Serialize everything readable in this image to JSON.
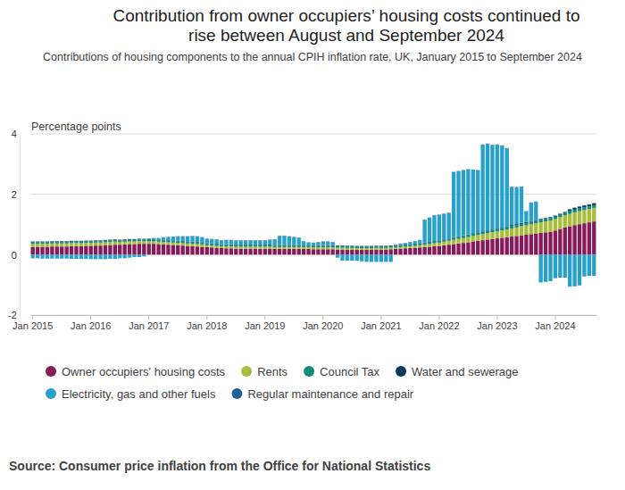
{
  "chart_data": {
    "type": "bar",
    "stacked": true,
    "grid": true,
    "legend": "bottom",
    "title": "Contribution from owner occupiers’ housing costs continued to rise between August and September 2024",
    "subtitle": "Contributions of housing components to the annual CPIH inflation rate, UK, January 2015 to September 2024",
    "y_label": "Percentage points",
    "source": "Source: Consumer price inflation from the Office for National Statistics",
    "ylim": [
      -2,
      4
    ],
    "yticks": [
      -2,
      0,
      2,
      4
    ],
    "categories": [
      "Jan 2015",
      null,
      null,
      null,
      null,
      null,
      null,
      null,
      null,
      null,
      null,
      null,
      "Jan 2016",
      null,
      null,
      null,
      null,
      null,
      null,
      null,
      null,
      null,
      null,
      null,
      "Jan 2017",
      null,
      null,
      null,
      null,
      null,
      null,
      null,
      null,
      null,
      null,
      null,
      "Jan 2018",
      null,
      null,
      null,
      null,
      null,
      null,
      null,
      null,
      null,
      null,
      null,
      "Jan 2019",
      null,
      null,
      null,
      null,
      null,
      null,
      null,
      null,
      null,
      null,
      null,
      "Jan 2020",
      null,
      null,
      null,
      null,
      null,
      null,
      null,
      null,
      null,
      null,
      null,
      "Jan 2021",
      null,
      null,
      null,
      null,
      null,
      null,
      null,
      null,
      null,
      null,
      null,
      "Jan 2022",
      null,
      null,
      null,
      null,
      null,
      null,
      null,
      null,
      null,
      null,
      null,
      "Jan 2023",
      null,
      null,
      null,
      null,
      null,
      null,
      null,
      null,
      null,
      null,
      null,
      "Jan 2024",
      null,
      null,
      null,
      null,
      null,
      null,
      null,
      null
    ],
    "series": [
      {
        "name": "Owner occupiers' housing costs",
        "color": "#871a5b",
        "values": [
          0.26,
          0.26,
          0.26,
          0.26,
          0.27,
          0.27,
          0.27,
          0.27,
          0.28,
          0.28,
          0.28,
          0.29,
          0.29,
          0.3,
          0.3,
          0.31,
          0.32,
          0.33,
          0.33,
          0.34,
          0.35,
          0.35,
          0.36,
          0.36,
          0.36,
          0.36,
          0.35,
          0.34,
          0.33,
          0.32,
          0.31,
          0.3,
          0.29,
          0.28,
          0.27,
          0.26,
          0.25,
          0.24,
          0.23,
          0.22,
          0.21,
          0.21,
          0.2,
          0.2,
          0.2,
          0.2,
          0.2,
          0.2,
          0.2,
          0.2,
          0.19,
          0.19,
          0.19,
          0.19,
          0.19,
          0.19,
          0.19,
          0.19,
          0.18,
          0.18,
          0.18,
          0.18,
          0.18,
          0.17,
          0.17,
          0.16,
          0.16,
          0.16,
          0.16,
          0.16,
          0.16,
          0.17,
          0.17,
          0.17,
          0.18,
          0.19,
          0.2,
          0.21,
          0.22,
          0.23,
          0.24,
          0.25,
          0.26,
          0.28,
          0.29,
          0.31,
          0.33,
          0.35,
          0.37,
          0.39,
          0.41,
          0.44,
          0.46,
          0.48,
          0.5,
          0.52,
          0.54,
          0.56,
          0.58,
          0.6,
          0.62,
          0.64,
          0.66,
          0.68,
          0.7,
          0.72,
          0.74,
          0.76,
          0.8,
          0.85,
          0.9,
          0.94,
          0.98,
          1.01,
          1.04,
          1.07,
          1.1
        ]
      },
      {
        "name": "Rents",
        "color": "#a8bd3a",
        "values": [
          0.1,
          0.1,
          0.1,
          0.1,
          0.1,
          0.1,
          0.1,
          0.1,
          0.1,
          0.1,
          0.1,
          0.1,
          0.1,
          0.1,
          0.1,
          0.1,
          0.1,
          0.1,
          0.09,
          0.09,
          0.09,
          0.09,
          0.09,
          0.09,
          0.08,
          0.08,
          0.08,
          0.08,
          0.08,
          0.08,
          0.08,
          0.08,
          0.08,
          0.08,
          0.08,
          0.08,
          0.06,
          0.06,
          0.06,
          0.06,
          0.06,
          0.06,
          0.06,
          0.06,
          0.06,
          0.06,
          0.06,
          0.06,
          0.06,
          0.06,
          0.06,
          0.06,
          0.06,
          0.06,
          0.06,
          0.06,
          0.06,
          0.06,
          0.06,
          0.06,
          0.06,
          0.06,
          0.06,
          0.06,
          0.06,
          0.06,
          0.06,
          0.05,
          0.05,
          0.05,
          0.05,
          0.05,
          0.05,
          0.05,
          0.05,
          0.05,
          0.05,
          0.05,
          0.06,
          0.06,
          0.07,
          0.08,
          0.09,
          0.1,
          0.11,
          0.12,
          0.13,
          0.14,
          0.15,
          0.16,
          0.17,
          0.18,
          0.19,
          0.2,
          0.21,
          0.22,
          0.23,
          0.24,
          0.25,
          0.27,
          0.28,
          0.3,
          0.31,
          0.33,
          0.34,
          0.35,
          0.36,
          0.37,
          0.38,
          0.39,
          0.4,
          0.41,
          0.42,
          0.43,
          0.44,
          0.44,
          0.45
        ]
      },
      {
        "name": "Council Tax",
        "color": "#118c7b",
        "values": [
          0.05,
          0.05,
          0.05,
          0.05,
          0.05,
          0.05,
          0.05,
          0.05,
          0.05,
          0.05,
          0.05,
          0.05,
          0.05,
          0.05,
          0.05,
          0.05,
          0.05,
          0.05,
          0.05,
          0.05,
          0.05,
          0.05,
          0.05,
          0.05,
          0.05,
          0.05,
          0.05,
          0.05,
          0.05,
          0.05,
          0.05,
          0.05,
          0.05,
          0.05,
          0.05,
          0.05,
          0.05,
          0.05,
          0.05,
          0.05,
          0.05,
          0.05,
          0.05,
          0.05,
          0.05,
          0.05,
          0.05,
          0.05,
          0.05,
          0.05,
          0.05,
          0.05,
          0.05,
          0.05,
          0.05,
          0.05,
          0.05,
          0.05,
          0.05,
          0.05,
          0.05,
          0.05,
          0.05,
          0.05,
          0.05,
          0.05,
          0.05,
          0.05,
          0.05,
          0.05,
          0.05,
          0.05,
          0.05,
          0.05,
          0.05,
          0.05,
          0.05,
          0.05,
          0.05,
          0.05,
          0.05,
          0.05,
          0.05,
          0.05,
          0.05,
          0.05,
          0.05,
          0.07,
          0.07,
          0.07,
          0.07,
          0.07,
          0.07,
          0.07,
          0.07,
          0.07,
          0.07,
          0.07,
          0.07,
          0.08,
          0.08,
          0.08,
          0.08,
          0.08,
          0.08,
          0.08,
          0.08,
          0.08,
          0.08,
          0.08,
          0.08,
          0.09,
          0.09,
          0.09,
          0.09,
          0.09,
          0.09
        ]
      },
      {
        "name": "Water and sewerage",
        "color": "#003c57",
        "values": [
          0.02,
          0.02,
          0.02,
          0.02,
          0.02,
          0.02,
          0.02,
          0.02,
          0.02,
          0.02,
          0.02,
          0.02,
          0.02,
          0.02,
          0.02,
          0.02,
          0.02,
          0.02,
          0.02,
          0.02,
          0.02,
          0.02,
          0.02,
          0.02,
          0.02,
          0.02,
          0.02,
          0.02,
          0.02,
          0.02,
          0.02,
          0.02,
          0.02,
          0.02,
          0.02,
          0.02,
          0.02,
          0.02,
          0.02,
          0.02,
          0.02,
          0.02,
          0.02,
          0.02,
          0.02,
          0.02,
          0.02,
          0.02,
          0.02,
          0.02,
          0.02,
          0.02,
          0.02,
          0.02,
          0.02,
          0.02,
          0.02,
          0.02,
          0.02,
          0.02,
          0.02,
          0.02,
          0.02,
          0.02,
          0.02,
          0.02,
          0.02,
          0.02,
          0.02,
          0.02,
          0.02,
          0.02,
          0.02,
          0.02,
          0.02,
          0.02,
          0.02,
          0.02,
          0.02,
          0.02,
          0.02,
          0.02,
          0.02,
          0.02,
          0.02,
          0.02,
          0.02,
          0.02,
          0.02,
          0.02,
          0.02,
          0.02,
          0.02,
          0.02,
          0.02,
          0.02,
          0.02,
          0.02,
          0.02,
          0.03,
          0.03,
          0.03,
          0.03,
          0.03,
          0.03,
          0.03,
          0.03,
          0.03,
          0.03,
          0.03,
          0.03,
          0.06,
          0.06,
          0.06,
          0.06,
          0.06,
          0.06
        ]
      },
      {
        "name": "Electricity, gas and other fuels",
        "color": "#27a0cc",
        "values": [
          -0.12,
          -0.12,
          -0.13,
          -0.13,
          -0.13,
          -0.13,
          -0.13,
          -0.13,
          -0.14,
          -0.14,
          -0.14,
          -0.14,
          -0.15,
          -0.15,
          -0.15,
          -0.15,
          -0.14,
          -0.14,
          -0.12,
          -0.12,
          -0.1,
          -0.08,
          -0.08,
          -0.06,
          0.02,
          0.03,
          0.04,
          0.08,
          0.1,
          0.12,
          0.14,
          0.15,
          0.16,
          0.18,
          0.18,
          0.16,
          0.14,
          0.14,
          0.14,
          0.12,
          0.14,
          0.14,
          0.14,
          0.14,
          0.14,
          0.14,
          0.14,
          0.14,
          0.14,
          0.16,
          0.18,
          0.3,
          0.3,
          0.28,
          0.26,
          0.24,
          0.12,
          0.08,
          0.08,
          0.1,
          0.12,
          0.12,
          0.1,
          -0.1,
          -0.2,
          -0.2,
          -0.2,
          -0.2,
          -0.22,
          -0.24,
          -0.24,
          -0.24,
          -0.24,
          -0.24,
          -0.24,
          0.02,
          0.04,
          0.05,
          0.06,
          0.08,
          0.1,
          0.75,
          0.8,
          0.85,
          0.85,
          0.85,
          0.85,
          2.15,
          2.15,
          2.15,
          2.15,
          2.1,
          2.05,
          2.87,
          2.87,
          2.8,
          2.78,
          2.72,
          2.6,
          1.26,
          1.22,
          1.2,
          0.35,
          0.6,
          0.6,
          -0.92,
          -0.9,
          -0.88,
          -0.78,
          -0.76,
          -0.76,
          -1.06,
          -1.05,
          -1.02,
          -0.72,
          -0.7,
          -0.7
        ]
      },
      {
        "name": "Regular maintenance and repair",
        "color": "#206095",
        "values": [
          0.01,
          0.01,
          0.01,
          0.01,
          0.01,
          0.01,
          0.01,
          0.01,
          0.01,
          0.01,
          0.01,
          0.01,
          0.01,
          0.01,
          0.01,
          0.01,
          0.01,
          0.01,
          0.01,
          0.01,
          0.01,
          0.01,
          0.01,
          0.01,
          0.01,
          0.01,
          0.01,
          0.01,
          0.01,
          0.01,
          0.01,
          0.01,
          0.01,
          0.01,
          0.01,
          0.01,
          0.01,
          0.01,
          0.01,
          0.01,
          0.01,
          0.01,
          0.01,
          0.01,
          0.01,
          0.01,
          0.01,
          0.01,
          0.01,
          0.01,
          0.01,
          0.01,
          0.01,
          0.01,
          0.01,
          0.01,
          0.01,
          0.01,
          0.01,
          0.01,
          0.01,
          0.01,
          0.01,
          0.01,
          0.01,
          0.01,
          0.01,
          0.01,
          0.01,
          0.01,
          0.01,
          0.01,
          0.01,
          0.01,
          0.01,
          0.01,
          0.01,
          0.01,
          0.01,
          0.01,
          0.01,
          0.01,
          0.01,
          0.01,
          0.01,
          0.01,
          0.01,
          0.01,
          0.01,
          0.01,
          0.01,
          0.01,
          0.01,
          0.01,
          0.01,
          0.01,
          0.01,
          0.01,
          0.01,
          0.01,
          0.01,
          0.01,
          0.01,
          0.01,
          0.01,
          0.01,
          0.01,
          0.01,
          0.01,
          0.01,
          0.01,
          0.01,
          0.01,
          0.01,
          0.01,
          0.01,
          0.01
        ]
      }
    ]
  }
}
